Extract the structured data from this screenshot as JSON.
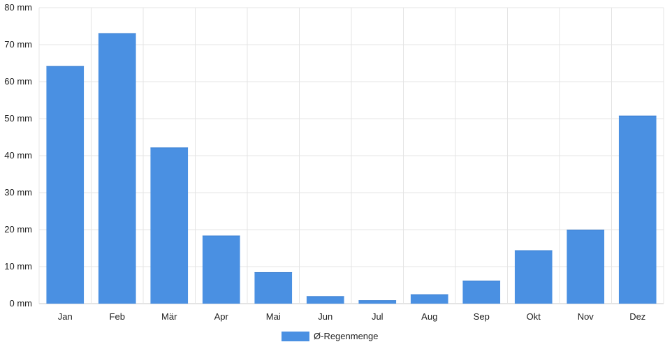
{
  "chart_data": {
    "type": "bar",
    "categories": [
      "Jan",
      "Feb",
      "Mär",
      "Apr",
      "Mai",
      "Jun",
      "Jul",
      "Aug",
      "Sep",
      "Okt",
      "Nov",
      "Dez"
    ],
    "series": [
      {
        "name": "Ø-Regenmenge",
        "color": "#4a90e2",
        "values": [
          64.2,
          73.1,
          42.2,
          18.4,
          8.5,
          2.0,
          0.9,
          2.5,
          6.2,
          14.4,
          20.0,
          50.8
        ]
      }
    ],
    "y_unit": "mm",
    "ylim": [
      0,
      80
    ],
    "yticks": [
      0,
      10,
      20,
      30,
      40,
      50,
      60,
      70,
      80
    ],
    "ytick_labels": [
      "0 mm",
      "10 mm",
      "20 mm",
      "30 mm",
      "40 mm",
      "50 mm",
      "60 mm",
      "70 mm",
      "80 mm"
    ],
    "grid": true,
    "legend_position": "bottom-center"
  }
}
